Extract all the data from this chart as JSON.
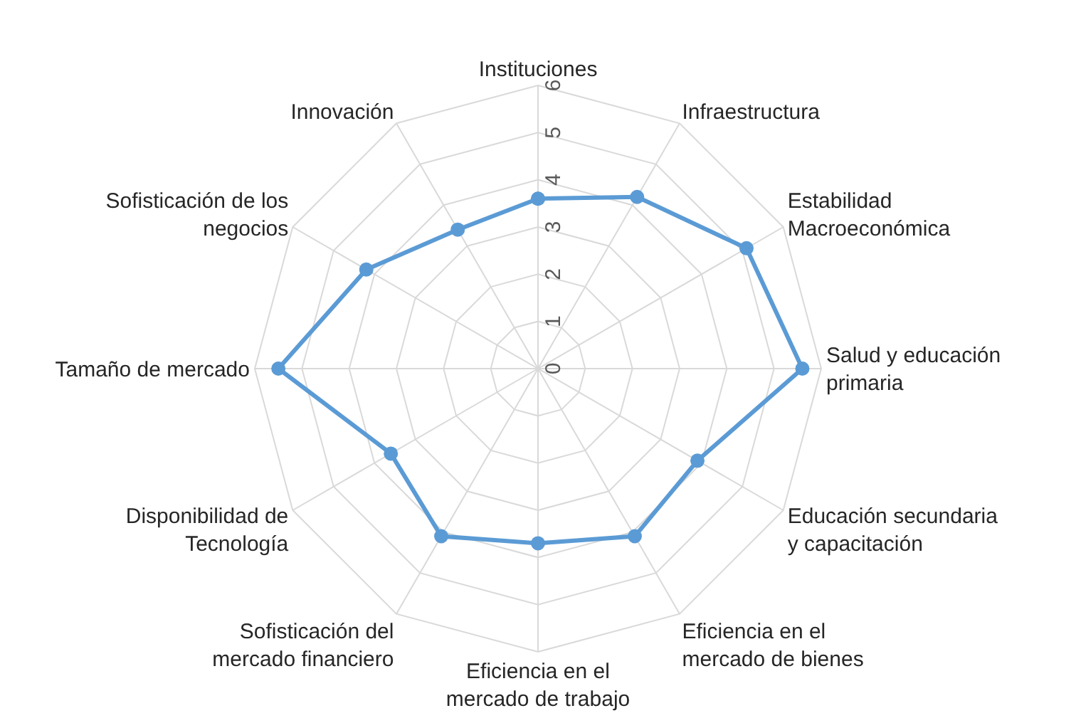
{
  "chart_data": {
    "type": "radar",
    "categories": [
      "Instituciones",
      "Infraestructura",
      "Estabilidad\nMacroeconómica",
      "Salud y educación\nprimaria",
      "Educación secundaria\ny capacitación",
      "Eficiencia en el\nmercado de bienes",
      "Eficiencia en el\nmercado de trabajo",
      "Sofisticación del\nmercado financiero",
      "Disponibilidad de\nTecnología",
      "Tamaño de mercado",
      "Sofisticación de los\nnegocios",
      "Innovación"
    ],
    "series": [
      {
        "color": "#5b9bd5",
        "values": [
          3.6,
          4.2,
          5.1,
          5.6,
          3.9,
          4.1,
          3.7,
          4.1,
          3.6,
          5.5,
          4.2,
          3.4
        ]
      }
    ],
    "ylim": [
      0,
      6
    ],
    "yticks": [
      0,
      1,
      2,
      3,
      4,
      5,
      6
    ],
    "grid": true,
    "marker": "circle",
    "line_style": "solid"
  }
}
